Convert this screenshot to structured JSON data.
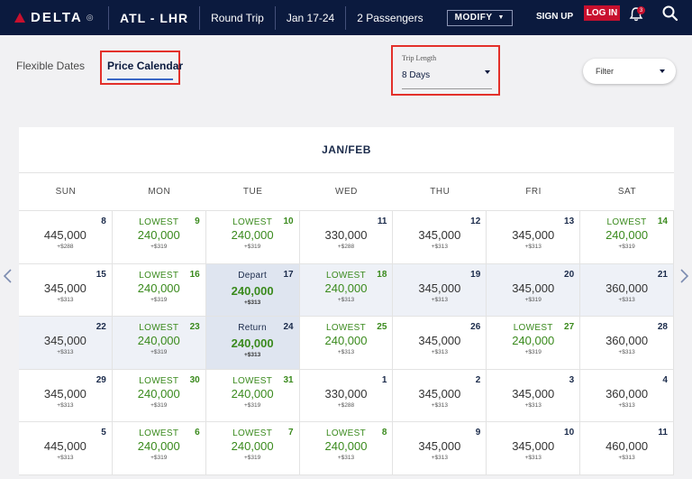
{
  "header": {
    "logo_text": "DELTA",
    "route": "ATL - LHR",
    "trip_type": "Round Trip",
    "dates": "Jan 17-24",
    "passengers": "2 Passengers",
    "modify_label": "MODIFY",
    "signup_label": "SIGN UP",
    "login_label": "LOG IN",
    "notification_count": "3"
  },
  "tabs": {
    "flexible": "Flexible Dates",
    "price_calendar": "Price Calendar"
  },
  "trip_length": {
    "label": "Trip Length",
    "value": "8 Days"
  },
  "filter": {
    "label": "Filter"
  },
  "calendar": {
    "title": "JAN/FEB",
    "weekdays": [
      "SUN",
      "MON",
      "TUE",
      "WED",
      "THU",
      "FRI",
      "SAT"
    ],
    "cells": [
      {
        "day": "8",
        "label": "",
        "price": "445,000",
        "tax": "+$288",
        "kind": "normal"
      },
      {
        "day": "9",
        "label": "LOWEST",
        "price": "240,000",
        "tax": "+$319",
        "kind": "lowest"
      },
      {
        "day": "10",
        "label": "LOWEST",
        "price": "240,000",
        "tax": "+$319",
        "kind": "lowest"
      },
      {
        "day": "11",
        "label": "",
        "price": "330,000",
        "tax": "+$288",
        "kind": "normal"
      },
      {
        "day": "12",
        "label": "",
        "price": "345,000",
        "tax": "+$313",
        "kind": "normal"
      },
      {
        "day": "13",
        "label": "",
        "price": "345,000",
        "tax": "+$313",
        "kind": "normal"
      },
      {
        "day": "14",
        "label": "LOWEST",
        "price": "240,000",
        "tax": "+$319",
        "kind": "lowest"
      },
      {
        "day": "15",
        "label": "",
        "price": "345,000",
        "tax": "+$313",
        "kind": "normal"
      },
      {
        "day": "16",
        "label": "LOWEST",
        "price": "240,000",
        "tax": "+$319",
        "kind": "lowest"
      },
      {
        "day": "17",
        "label": "Depart",
        "price": "240,000",
        "tax": "+$313",
        "kind": "depart"
      },
      {
        "day": "18",
        "label": "LOWEST",
        "price": "240,000",
        "tax": "+$313",
        "kind": "lowest",
        "shaded": true
      },
      {
        "day": "19",
        "label": "",
        "price": "345,000",
        "tax": "+$313",
        "kind": "normal",
        "shaded": true
      },
      {
        "day": "20",
        "label": "",
        "price": "345,000",
        "tax": "+$319",
        "kind": "normal",
        "shaded": true
      },
      {
        "day": "21",
        "label": "",
        "price": "360,000",
        "tax": "+$313",
        "kind": "normal",
        "shaded": true
      },
      {
        "day": "22",
        "label": "",
        "price": "345,000",
        "tax": "+$313",
        "kind": "normal",
        "shaded": true
      },
      {
        "day": "23",
        "label": "LOWEST",
        "price": "240,000",
        "tax": "+$319",
        "kind": "lowest",
        "shaded": true
      },
      {
        "day": "24",
        "label": "Return",
        "price": "240,000",
        "tax": "+$313",
        "kind": "return"
      },
      {
        "day": "25",
        "label": "LOWEST",
        "price": "240,000",
        "tax": "+$313",
        "kind": "lowest"
      },
      {
        "day": "26",
        "label": "",
        "price": "345,000",
        "tax": "+$313",
        "kind": "normal"
      },
      {
        "day": "27",
        "label": "LOWEST",
        "price": "240,000",
        "tax": "+$319",
        "kind": "lowest"
      },
      {
        "day": "28",
        "label": "",
        "price": "360,000",
        "tax": "+$313",
        "kind": "normal"
      },
      {
        "day": "29",
        "label": "",
        "price": "345,000",
        "tax": "+$313",
        "kind": "normal"
      },
      {
        "day": "30",
        "label": "LOWEST",
        "price": "240,000",
        "tax": "+$319",
        "kind": "lowest"
      },
      {
        "day": "31",
        "label": "LOWEST",
        "price": "240,000",
        "tax": "+$319",
        "kind": "lowest"
      },
      {
        "day": "1",
        "label": "",
        "price": "330,000",
        "tax": "+$288",
        "kind": "normal"
      },
      {
        "day": "2",
        "label": "",
        "price": "345,000",
        "tax": "+$313",
        "kind": "normal"
      },
      {
        "day": "3",
        "label": "",
        "price": "345,000",
        "tax": "+$313",
        "kind": "normal"
      },
      {
        "day": "4",
        "label": "",
        "price": "360,000",
        "tax": "+$313",
        "kind": "normal"
      },
      {
        "day": "5",
        "label": "",
        "price": "445,000",
        "tax": "+$313",
        "kind": "normal"
      },
      {
        "day": "6",
        "label": "LOWEST",
        "price": "240,000",
        "tax": "+$319",
        "kind": "lowest"
      },
      {
        "day": "7",
        "label": "LOWEST",
        "price": "240,000",
        "tax": "+$319",
        "kind": "lowest"
      },
      {
        "day": "8",
        "label": "LOWEST",
        "price": "240,000",
        "tax": "+$313",
        "kind": "lowest"
      },
      {
        "day": "9",
        "label": "",
        "price": "345,000",
        "tax": "+$313",
        "kind": "normal"
      },
      {
        "day": "10",
        "label": "",
        "price": "345,000",
        "tax": "+$313",
        "kind": "normal"
      },
      {
        "day": "11",
        "label": "",
        "price": "460,000",
        "tax": "+$313",
        "kind": "normal"
      }
    ]
  },
  "colors": {
    "navy": "#0b1a3e",
    "red": "#c8102e",
    "green": "#3a8a1d",
    "highlight": "#e3302a"
  }
}
